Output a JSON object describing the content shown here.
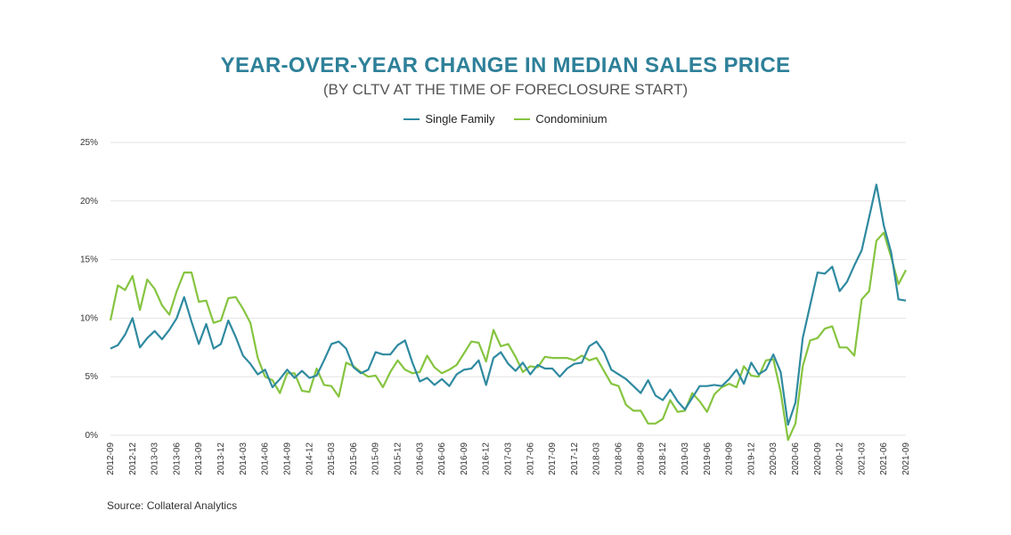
{
  "header": {
    "title": "YEAR-OVER-YEAR CHANGE IN MEDIAN SALES PRICE",
    "subtitle": "(BY CLTV AT THE TIME OF FORECLOSURE START)"
  },
  "source": "Source: Collateral Analytics",
  "colors": {
    "single_family": "#2f8aa0",
    "condominium": "#86c440",
    "grid": "#e3e3e3",
    "title": "#2e8099"
  },
  "chart_data": {
    "type": "line",
    "title": "YEAR-OVER-YEAR CHANGE IN MEDIAN SALES PRICE",
    "subtitle": "(BY CLTV AT THE TIME OF FORECLOSURE START)",
    "xlabel": "",
    "ylabel": "",
    "ylim": [
      0,
      25
    ],
    "y_ticks": [
      "0%",
      "5%",
      "10%",
      "15%",
      "20%",
      "25%"
    ],
    "grid": true,
    "legend_position": "top-center",
    "x_tick_labels": [
      "2012-09",
      "2012-12",
      "2013-03",
      "2013-06",
      "2013-09",
      "2013-12",
      "2014-03",
      "2014-06",
      "2014-09",
      "2014-12",
      "2015-03",
      "2015-06",
      "2015-09",
      "2015-12",
      "2016-03",
      "2016-06",
      "2016-09",
      "2016-12",
      "2017-03",
      "2017-06",
      "2017-09",
      "2017-12",
      "2018-03",
      "2018-06",
      "2018-09",
      "2018-12",
      "2019-03",
      "2019-06",
      "2019-09",
      "2019-12",
      "2020-03",
      "2020-06",
      "2020-09",
      "2020-12",
      "2021-03",
      "2021-06",
      "2021-09"
    ],
    "series": [
      {
        "name": "Single Family",
        "values": [
          7.4,
          7.7,
          8.6,
          10.0,
          7.5,
          8.3,
          8.9,
          8.2,
          9.0,
          10.0,
          11.8,
          9.7,
          7.8,
          9.5,
          7.4,
          7.8,
          9.8,
          8.4,
          6.8,
          6.1,
          5.2,
          5.6,
          4.1,
          4.8,
          5.6,
          4.9,
          5.5,
          4.9,
          5.1,
          6.4,
          7.8,
          8.0,
          7.4,
          5.8,
          5.3,
          5.6,
          7.1,
          6.9,
          6.9,
          7.7,
          8.1,
          6.2,
          4.6,
          4.9,
          4.3,
          4.8,
          4.2,
          5.2,
          5.6,
          5.7,
          6.4,
          4.3,
          6.6,
          7.1,
          6.1,
          5.5,
          6.2,
          5.2,
          6.0,
          5.7,
          5.7,
          5.0,
          5.7,
          6.1,
          6.2,
          7.6,
          8.0,
          7.1,
          5.6,
          5.2,
          4.8,
          4.2,
          3.6,
          4.7,
          3.4,
          3.0,
          3.9,
          2.9,
          2.2,
          3.2,
          4.2,
          4.2,
          4.3,
          4.2,
          4.8,
          5.6,
          4.4,
          6.2,
          5.2,
          5.6,
          6.9,
          5.4,
          0.9,
          2.8,
          8.3,
          11.1,
          13.9,
          13.8,
          14.4,
          12.3,
          13.1,
          14.5,
          15.8,
          18.6,
          21.4,
          17.9,
          15.6,
          11.6,
          11.5
        ]
      },
      {
        "name": "Condominium",
        "values": [
          9.8,
          12.8,
          12.4,
          13.6,
          10.7,
          13.3,
          12.5,
          11.1,
          10.3,
          12.3,
          13.9,
          13.9,
          11.4,
          11.5,
          9.6,
          9.8,
          11.7,
          11.8,
          10.8,
          9.6,
          6.6,
          5.0,
          4.7,
          3.6,
          5.3,
          5.3,
          3.8,
          3.7,
          5.7,
          4.3,
          4.2,
          3.3,
          6.2,
          5.9,
          5.4,
          5.0,
          5.1,
          4.1,
          5.4,
          6.4,
          5.6,
          5.3,
          5.4,
          6.8,
          5.8,
          5.3,
          5.6,
          6.0,
          7.0,
          8.0,
          7.9,
          6.3,
          9.0,
          7.6,
          7.8,
          6.7,
          5.4,
          5.9,
          5.8,
          6.7,
          6.6,
          6.6,
          6.6,
          6.4,
          6.8,
          6.4,
          6.6,
          5.5,
          4.4,
          4.2,
          2.6,
          2.1,
          2.1,
          1.0,
          1.0,
          1.4,
          3.0,
          2.0,
          2.1,
          3.6,
          2.9,
          2.0,
          3.5,
          4.1,
          4.4,
          4.1,
          5.9,
          5.1,
          5.0,
          6.4,
          6.5,
          3.7,
          -0.4,
          1.0,
          5.9,
          8.1,
          8.3,
          9.1,
          9.3,
          7.5,
          7.5,
          6.8,
          11.6,
          12.3,
          16.6,
          17.3,
          15.2,
          12.9,
          14.1
        ]
      }
    ]
  }
}
